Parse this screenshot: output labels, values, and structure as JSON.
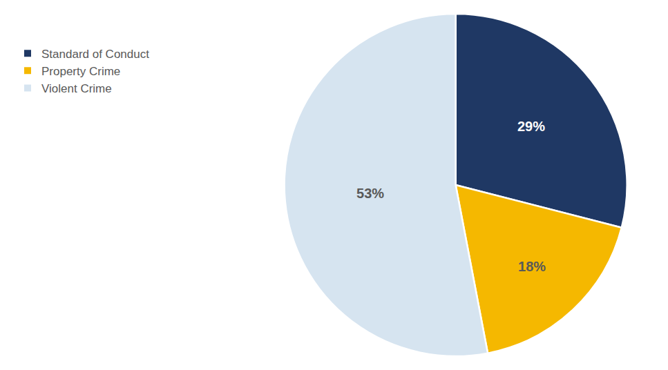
{
  "chart_data": {
    "type": "pie",
    "categories": [
      "Standard of Conduct",
      "Property Crime",
      "Violent Crime"
    ],
    "values": [
      29,
      18,
      53
    ],
    "value_labels": [
      "29%",
      "18%",
      "53%"
    ],
    "colors": [
      "#1f3864",
      "#f5b800",
      "#d6e4f0"
    ],
    "data_labels": true,
    "legend": "upper left"
  }
}
